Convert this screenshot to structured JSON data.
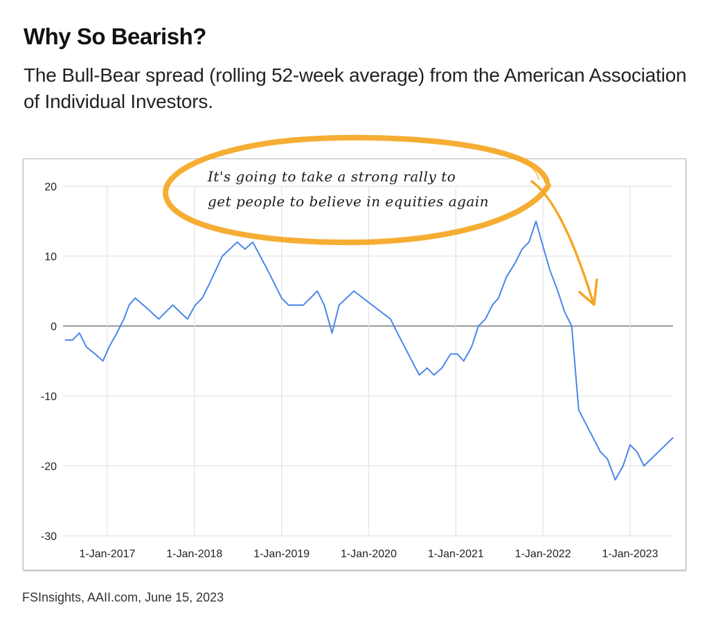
{
  "header": {
    "title": "Why So Bearish?",
    "subtitle": "The Bull-Bear spread (rolling 52-week average) from the American Association of Individual Investors."
  },
  "annotation": {
    "lines": [
      "It's going to take a strong rally to",
      "get people to believe in equities again"
    ],
    "color": "#f5a623"
  },
  "footer": {
    "source": "FSInsights, AAII.com, June 15, 2023"
  },
  "chart_data": {
    "type": "line",
    "title": "Why So Bearish?",
    "subtitle": "The Bull-Bear spread (rolling 52-week average) from the American Association of Individual Investors.",
    "xlabel": "",
    "ylabel": "",
    "ylim": [
      -30,
      20
    ],
    "xlim": [
      2016.5,
      2023.5
    ],
    "grid": true,
    "legend": "none",
    "yticks": [
      20,
      10,
      0,
      -10,
      -20,
      -30
    ],
    "ytick_labels": [
      "20",
      "10",
      "0",
      "-10",
      "-20",
      "-30"
    ],
    "xticks": [
      2017,
      2018,
      2019,
      2020,
      2021,
      2022,
      2023
    ],
    "xtick_labels": [
      "1-Jan-2017",
      "1-Jan-2018",
      "1-Jan-2019",
      "1-Jan-2020",
      "1-Jan-2021",
      "1-Jan-2022",
      "1-Jan-2023"
    ],
    "series": [
      {
        "name": "Bull-Bear spread (52-week avg)",
        "color": "#4a86e8",
        "x": [
          2016.52,
          2016.6,
          2016.68,
          2016.76,
          2016.86,
          2016.95,
          2017.02,
          2017.11,
          2017.19,
          2017.25,
          2017.32,
          2017.46,
          2017.59,
          2017.75,
          2017.92,
          2018.01,
          2018.09,
          2018.17,
          2018.32,
          2018.49,
          2018.58,
          2018.67,
          2018.84,
          2019.0,
          2019.08,
          2019.25,
          2019.41,
          2019.49,
          2019.58,
          2019.66,
          2019.83,
          2020.25,
          2020.33,
          2020.58,
          2020.67,
          2020.75,
          2020.84,
          2020.94,
          2021.02,
          2021.09,
          2021.18,
          2021.26,
          2021.34,
          2021.42,
          2021.49,
          2021.58,
          2021.68,
          2021.76,
          2021.84,
          2021.92,
          2022.01,
          2022.08,
          2022.17,
          2022.25,
          2022.33,
          2022.41,
          2022.66,
          2022.74,
          2022.83,
          2022.92,
          2023.0,
          2023.08,
          2023.16,
          2023.49
        ],
        "values": [
          -2,
          -2,
          -1,
          -3,
          -4,
          -5,
          -3,
          -1,
          1,
          3,
          4,
          2.5,
          1,
          3,
          1,
          3,
          4,
          6,
          10,
          12,
          11,
          12,
          8,
          4,
          3,
          3,
          5,
          3,
          -1,
          3,
          5,
          1,
          -1,
          -7,
          -6,
          -7,
          -6,
          -4,
          -4,
          -5,
          -3,
          0,
          1,
          3,
          4,
          7,
          9,
          11,
          12,
          15,
          11,
          8,
          5,
          2,
          0,
          -12,
          -18,
          -19,
          -22,
          -20,
          -17,
          -18,
          -20,
          -16
        ]
      }
    ],
    "annotations": [
      {
        "text": "It's going to take a strong rally to get people to believe in equities again",
        "style": "handwritten, circled in orange with arrow pointing down toward 2022 decline"
      }
    ]
  }
}
